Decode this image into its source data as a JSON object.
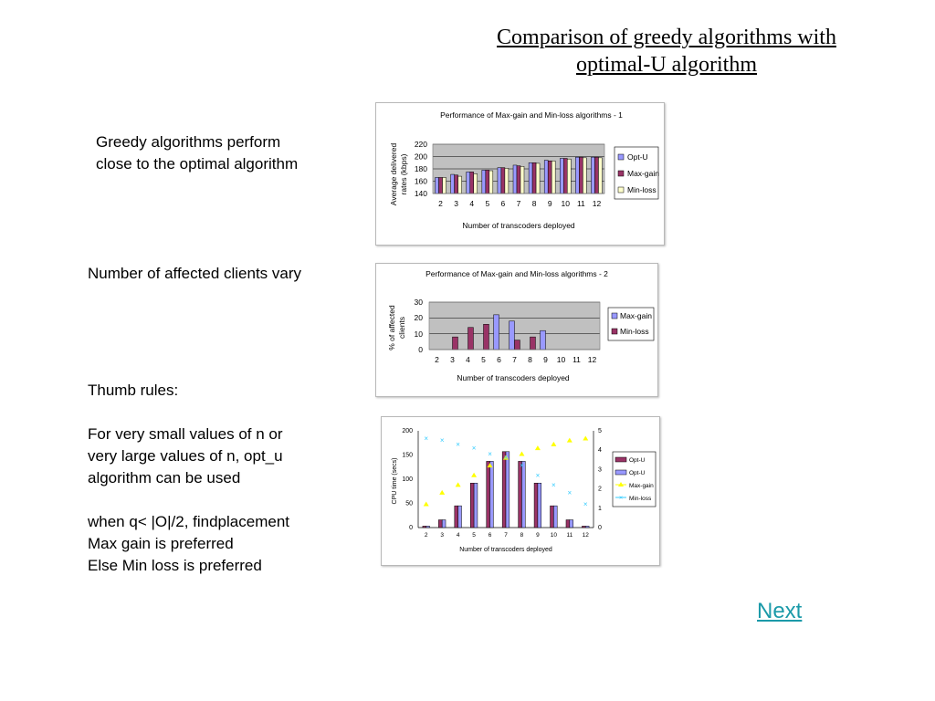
{
  "title_line1": "Comparison of greedy algorithms with",
  "title_line2": "optimal-U algorithm",
  "text1": "Greedy algorithms perform\nclose to the optimal algorithm",
  "text2": "Number of affected clients vary",
  "text3": "Thumb rules:\n\nFor very small values of n or\nvery large values of n, opt_u\nalgorithm can be used\n\nwhen q< |O|/2, findplacement\nMax gain is preferred\nElse Min loss is preferred",
  "next_label": "Next",
  "colors": {
    "opt": "#9999ff",
    "maxgain": "#993366",
    "minloss": "#ffffcc",
    "plot_bg": "#c0c0c0",
    "yellow": "#ffff00",
    "cyan": "#33ccff"
  },
  "chart_data": [
    {
      "type": "bar",
      "title": "Performance of Max-gain and Min-loss algorithms - 1",
      "xlabel": "Number of transcoders deployed",
      "ylabel": "Average delivered rates (kbps)",
      "ylabel_lines": [
        "Average delivered",
        "rates (kbps)"
      ],
      "categories": [
        "2",
        "3",
        "4",
        "5",
        "6",
        "7",
        "8",
        "9",
        "10",
        "11",
        "12"
      ],
      "ylim": [
        140,
        220
      ],
      "yticks": [
        "220",
        "200",
        "180",
        "160",
        "140"
      ],
      "legend": "right",
      "grid": true,
      "series": [
        {
          "name": "Opt-U",
          "values": [
            166,
            171,
            175,
            178,
            182,
            186,
            190,
            194,
            197,
            199,
            199
          ]
        },
        {
          "name": "Max-gain",
          "values": [
            166,
            170,
            175,
            178,
            182,
            185,
            190,
            193,
            197,
            199,
            199
          ]
        },
        {
          "name": "Min-loss",
          "values": [
            166,
            168,
            172,
            177,
            181,
            184,
            189,
            193,
            196,
            198,
            198
          ]
        }
      ]
    },
    {
      "type": "bar",
      "title": "Performance of Max-gain and Min-loss algorithms - 2",
      "xlabel": "Number of transcoders deployed",
      "ylabel": "% of affected clients",
      "ylabel_lines": [
        "%  of affected",
        "clients"
      ],
      "categories": [
        "2",
        "3",
        "4",
        "5",
        "6",
        "7",
        "8",
        "9",
        "10",
        "11",
        "12"
      ],
      "ylim": [
        0,
        30
      ],
      "yticks": [
        "30",
        "20",
        "10",
        "0"
      ],
      "legend": "right",
      "grid": true,
      "series": [
        {
          "name": "Max-gain",
          "values": [
            0,
            0,
            0,
            0,
            22,
            18,
            0,
            12,
            0,
            0,
            0
          ]
        },
        {
          "name": "Min-loss",
          "values": [
            0,
            8,
            14,
            16,
            0,
            6,
            8,
            0,
            0,
            0,
            0
          ]
        }
      ]
    },
    {
      "type": "bar",
      "xlabel": "Number of transcoders deployed",
      "ylabel": "CPU time (secs)",
      "categories": [
        "2",
        "3",
        "4",
        "5",
        "6",
        "7",
        "8",
        "9",
        "10",
        "11",
        "12"
      ],
      "ylim": [
        0,
        200
      ],
      "yticks": [
        "200",
        "150",
        "100",
        "50",
        "0"
      ],
      "y2lim": [
        0,
        5
      ],
      "y2ticks": [
        "5",
        "4",
        "3",
        "2",
        "1",
        "0"
      ],
      "legend": "right",
      "grid": false,
      "series": [
        {
          "name": "Opt-U",
          "kind": "bar",
          "values": [
            3,
            16,
            45,
            92,
            137,
            157,
            137,
            92,
            45,
            16,
            3
          ]
        },
        {
          "name": "Opt-U",
          "kind": "bar",
          "values": [
            3,
            16,
            45,
            92,
            137,
            157,
            137,
            92,
            45,
            16,
            3
          ]
        },
        {
          "name": "Max-gain",
          "kind": "scatter",
          "axis": "right",
          "values": [
            1.2,
            1.8,
            2.2,
            2.7,
            3.2,
            3.6,
            3.8,
            4.1,
            4.3,
            4.5,
            4.6
          ]
        },
        {
          "name": "Min-loss",
          "kind": "scatter",
          "axis": "right",
          "values": [
            4.6,
            4.5,
            4.3,
            4.1,
            3.8,
            3.6,
            3.2,
            2.7,
            2.2,
            1.8,
            1.2
          ]
        }
      ]
    }
  ]
}
